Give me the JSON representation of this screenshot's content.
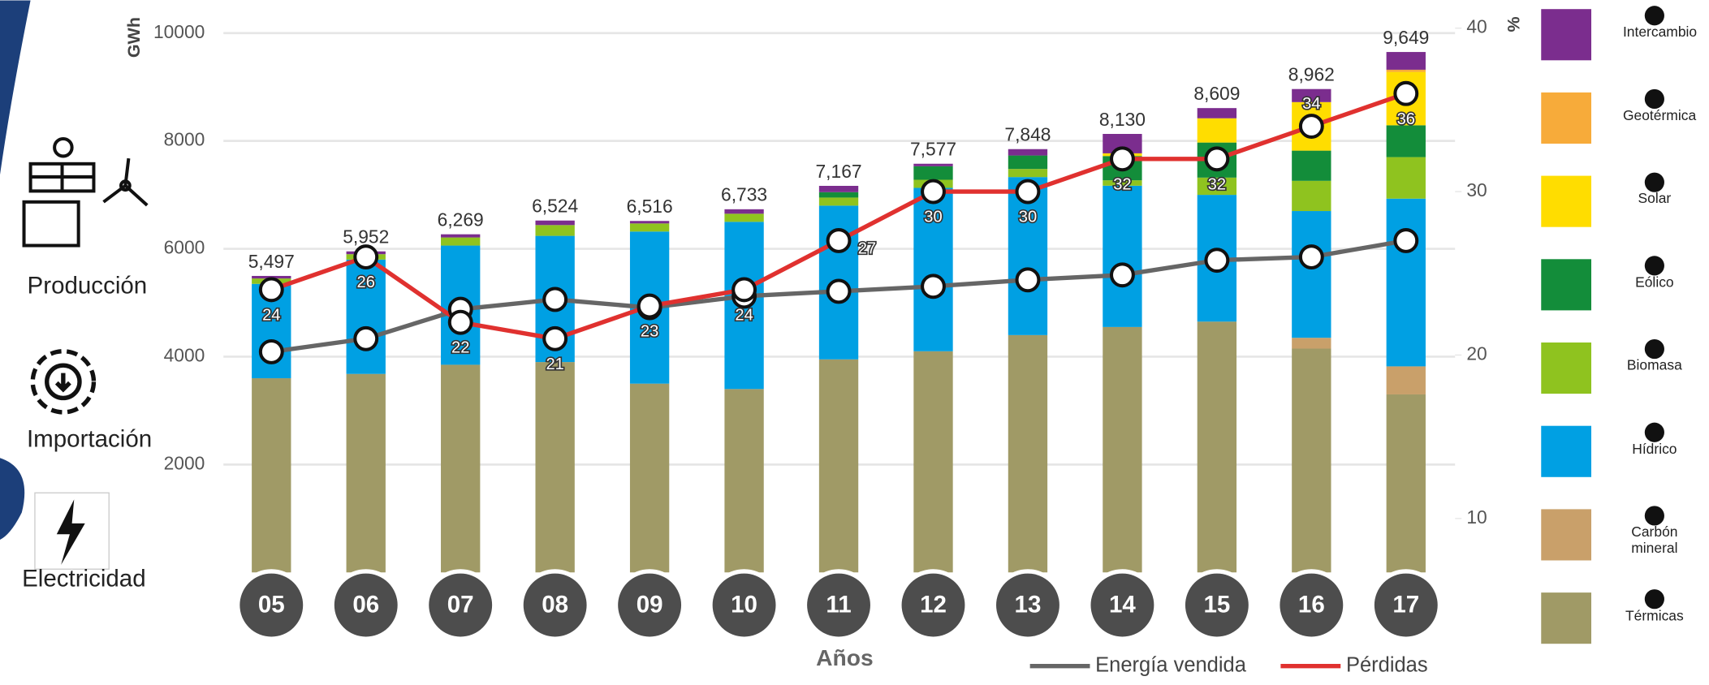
{
  "sidebar": {
    "labels": [
      "Producción",
      "Importación",
      "Electricidad"
    ]
  },
  "chart_data": {
    "type": "bar",
    "stacked": true,
    "categories": [
      "05",
      "06",
      "07",
      "08",
      "09",
      "10",
      "11",
      "12",
      "13",
      "14",
      "15",
      "16",
      "17"
    ],
    "x_label": "Años",
    "y_label": "GWh",
    "y2_label": "%",
    "ylim": [
      0,
      10000
    ],
    "yticks": [
      2000,
      4000,
      6000,
      8000,
      10000
    ],
    "y2lim": [
      6.7,
      39.7
    ],
    "y2ticks": [
      10,
      20,
      30,
      40
    ],
    "total_labels": [
      "5,497",
      "5,952",
      "6,269",
      "6,524",
      "6,516",
      "6,733",
      "7,167",
      "7,577",
      "7,848",
      "8,130",
      "8,609",
      "8,962",
      "9,649"
    ],
    "series": [
      {
        "name": "Térmicas",
        "color": "#a09a66",
        "values": [
          3600,
          3680,
          3850,
          3900,
          3500,
          3400,
          3950,
          4100,
          4400,
          4550,
          4650,
          4150,
          3300
        ]
      },
      {
        "name": "Carbón mineral",
        "color": "#c9a06a",
        "values": [
          0,
          0,
          0,
          0,
          0,
          0,
          0,
          0,
          0,
          0,
          0,
          200,
          520
        ]
      },
      {
        "name": "Hídrico",
        "color": "#00a0e3",
        "values": [
          1750,
          2120,
          2210,
          2340,
          2820,
          3100,
          2850,
          3030,
          2930,
          2620,
          2350,
          2350,
          3110
        ]
      },
      {
        "name": "Biomasa",
        "color": "#8fc31f",
        "values": [
          100,
          100,
          150,
          200,
          150,
          150,
          150,
          150,
          150,
          100,
          320,
          560,
          770
        ]
      },
      {
        "name": "Eólico",
        "color": "#138d3a",
        "values": [
          0,
          0,
          0,
          0,
          0,
          0,
          100,
          250,
          250,
          450,
          650,
          560,
          590
        ]
      },
      {
        "name": "Solar",
        "color": "#ffdd00",
        "values": [
          0,
          0,
          0,
          0,
          0,
          0,
          0,
          0,
          0,
          50,
          450,
          900,
          990
        ]
      },
      {
        "name": "Geotérmica",
        "color": "#f7ab3a",
        "values": [
          0,
          0,
          0,
          0,
          0,
          0,
          0,
          0,
          0,
          0,
          0,
          0,
          40
        ]
      },
      {
        "name": "Intercambio",
        "color": "#7b2d8e",
        "values": [
          47,
          52,
          59,
          84,
          46,
          83,
          117,
          47,
          118,
          360,
          189,
          242,
          329
        ]
      },
      {
        "name": "Energía vendida",
        "type": "line",
        "axis": "y2",
        "color": "#666666",
        "values": [
          20.2,
          21,
          22.8,
          23.4,
          22.9,
          23.6,
          23.9,
          24.2,
          24.6,
          24.9,
          25.8,
          26.0,
          27.0
        ]
      },
      {
        "name": "Pérdidas",
        "type": "line",
        "axis": "y2",
        "color": "#e0312f",
        "labeled": true,
        "values": [
          24,
          26,
          22,
          21,
          23,
          24,
          27,
          30,
          30,
          32,
          32,
          34,
          36
        ]
      }
    ]
  }
}
